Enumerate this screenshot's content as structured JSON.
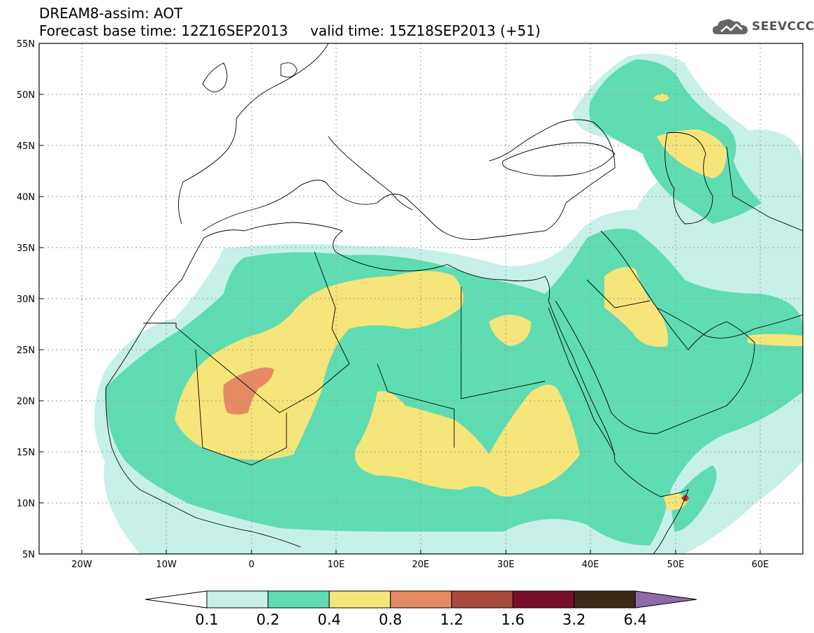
{
  "header": {
    "line1": "DREAM8-assim: AOT",
    "line2": "Forecast base time: 12Z16SEP2013     valid time: 15Z18SEP2013 (+51)"
  },
  "logo": {
    "text": "SEEVCCC",
    "icon": "cloud-icon"
  },
  "map": {
    "lon_range": [
      -25,
      65
    ],
    "lat_range": [
      5,
      55
    ],
    "lat_labels": [
      "55N",
      "50N",
      "45N",
      "40N",
      "35N",
      "30N",
      "25N",
      "20N",
      "15N",
      "10N",
      "5N"
    ],
    "lon_labels": [
      "20W",
      "10W",
      "0",
      "10E",
      "20E",
      "30E",
      "40E",
      "50E",
      "60E"
    ]
  },
  "colorbar": {
    "labels": [
      "0.1",
      "0.2",
      "0.4",
      "0.8",
      "1.2",
      "1.6",
      "3.2",
      "6.4"
    ],
    "colors": {
      "below": "#ffffff",
      "c1": "#c6f0e8",
      "c2": "#5fdcb2",
      "c3": "#f6e57a",
      "c4": "#e58a63",
      "c5": "#a8493a",
      "c6": "#7a0f2a",
      "c7": "#3d2a16",
      "above": "#8f6aa6"
    }
  }
}
